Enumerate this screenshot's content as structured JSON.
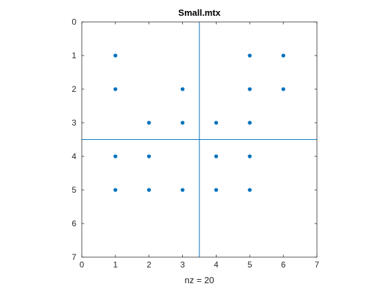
{
  "chart_data": {
    "type": "scatter",
    "title": "Small.mtx",
    "xlabel": "nz = 20",
    "ylabel": "",
    "xlim": [
      0,
      7
    ],
    "ylim": [
      0,
      7
    ],
    "y_reversed": true,
    "xticks": [
      "0",
      "1",
      "2",
      "3",
      "4",
      "5",
      "6",
      "7"
    ],
    "yticks": [
      "0",
      "1",
      "2",
      "3",
      "4",
      "5",
      "6",
      "7"
    ],
    "grid": false,
    "marker_color": "#0072BD",
    "divider_color": "#0072BD",
    "dividers": {
      "vertical_x": 3.5,
      "horizontal_y": 3.5
    },
    "points": [
      {
        "x": 1,
        "y": 1
      },
      {
        "x": 5,
        "y": 1
      },
      {
        "x": 6,
        "y": 1
      },
      {
        "x": 1,
        "y": 2
      },
      {
        "x": 3,
        "y": 2
      },
      {
        "x": 5,
        "y": 2
      },
      {
        "x": 6,
        "y": 2
      },
      {
        "x": 2,
        "y": 3
      },
      {
        "x": 3,
        "y": 3
      },
      {
        "x": 4,
        "y": 3
      },
      {
        "x": 5,
        "y": 3
      },
      {
        "x": 1,
        "y": 4
      },
      {
        "x": 2,
        "y": 4
      },
      {
        "x": 4,
        "y": 4
      },
      {
        "x": 5,
        "y": 4
      },
      {
        "x": 1,
        "y": 5
      },
      {
        "x": 2,
        "y": 5
      },
      {
        "x": 3,
        "y": 5
      },
      {
        "x": 4,
        "y": 5
      },
      {
        "x": 5,
        "y": 5
      }
    ]
  }
}
